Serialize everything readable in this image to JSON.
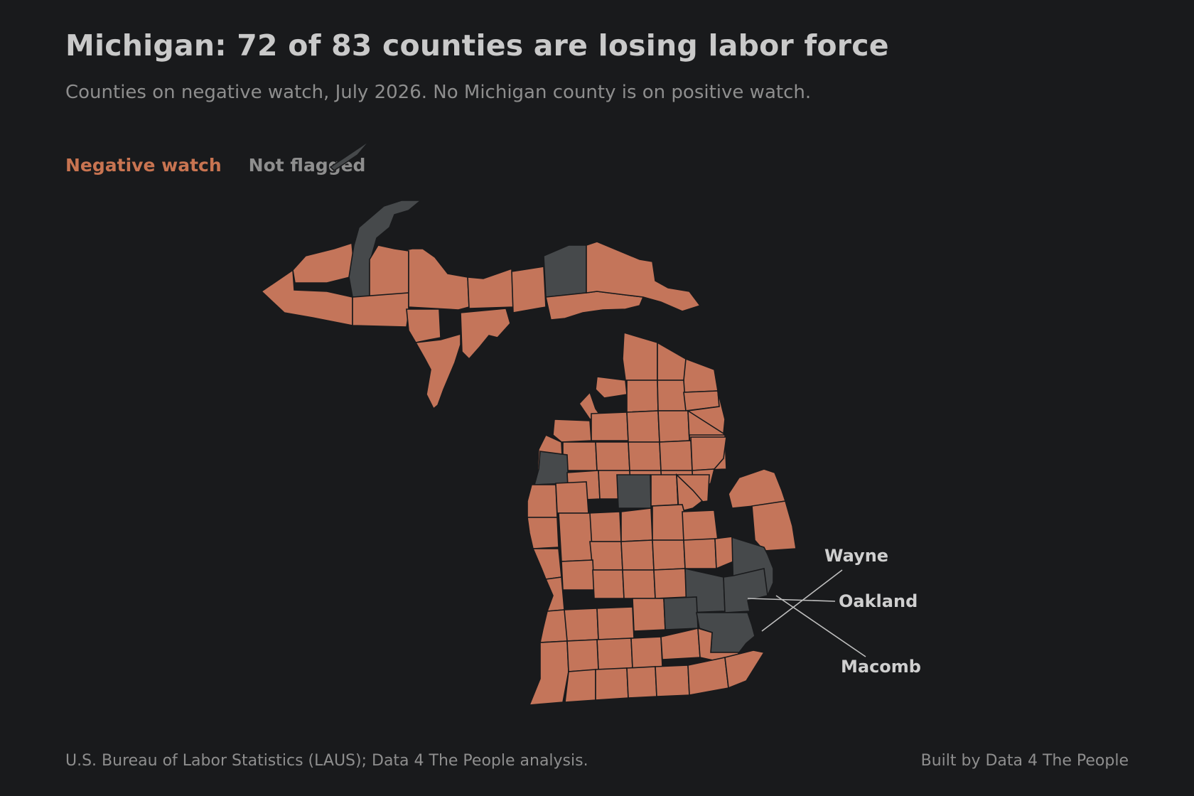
{
  "header": {
    "title": "Michigan: 72 of 83 counties are losing labor force",
    "subtitle": "Counties on negative watch, July 2026. No Michigan county is on positive watch."
  },
  "legend": {
    "negative_label": "Negative watch",
    "not_flagged_label": "Not flagged"
  },
  "map": {
    "colors": {
      "negative_watch": "#c4755a",
      "not_flagged": "#46494b",
      "background": "#191a1c",
      "county_border": "#191a1c"
    },
    "counts": {
      "negative_watch": 72,
      "total": 83
    },
    "callouts": {
      "wayne": "Wayne",
      "oakland": "Oakland",
      "macomb": "Macomb"
    }
  },
  "footer": {
    "source": "U.S. Bureau of Labor Statistics (LAUS); Data 4 The People analysis.",
    "credit": "Built by Data 4 The People"
  }
}
